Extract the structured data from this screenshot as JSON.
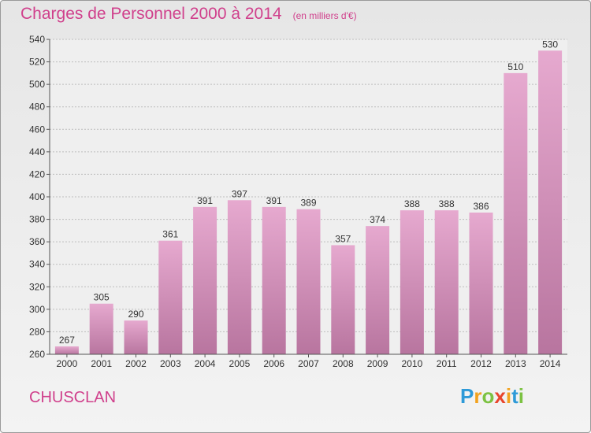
{
  "title": "Charges de Personnel 2000 à 2014",
  "subtitle": "(en milliers d'€)",
  "town": "CHUSCLAN",
  "logo": {
    "text": "Proxiti",
    "letters": [
      {
        "ch": "P",
        "color": "#2e9ad8"
      },
      {
        "ch": "r",
        "color": "#f2a21e"
      },
      {
        "ch": "o",
        "color": "#7cc242"
      },
      {
        "ch": "x",
        "color": "#e8452c"
      },
      {
        "ch": "i",
        "color": "#f2a21e"
      },
      {
        "ch": "t",
        "color": "#2e9ad8"
      },
      {
        "ch": "i",
        "color": "#7cc242"
      }
    ]
  },
  "colors": {
    "bar_top": "#e6a9cf",
    "bar_bottom": "#b8759f",
    "accent": "#d0408c",
    "grid": "#bdbdbd",
    "plot_bg": "#efefef"
  },
  "chart_data": {
    "type": "bar",
    "title": "Charges de Personnel 2000 à 2014",
    "subtitle": "(en milliers d'€)",
    "categories": [
      "2000",
      "2001",
      "2002",
      "2003",
      "2004",
      "2005",
      "2006",
      "2007",
      "2008",
      "2009",
      "2010",
      "2011",
      "2012",
      "2013",
      "2014"
    ],
    "values": [
      267,
      305,
      290,
      361,
      391,
      397,
      391,
      389,
      357,
      374,
      388,
      388,
      386,
      510,
      530
    ],
    "ylim": [
      260,
      540
    ],
    "yticks": [
      260,
      280,
      300,
      320,
      340,
      360,
      380,
      400,
      420,
      440,
      460,
      480,
      500,
      520,
      540
    ],
    "grid": true,
    "xlabel": "",
    "ylabel": ""
  }
}
